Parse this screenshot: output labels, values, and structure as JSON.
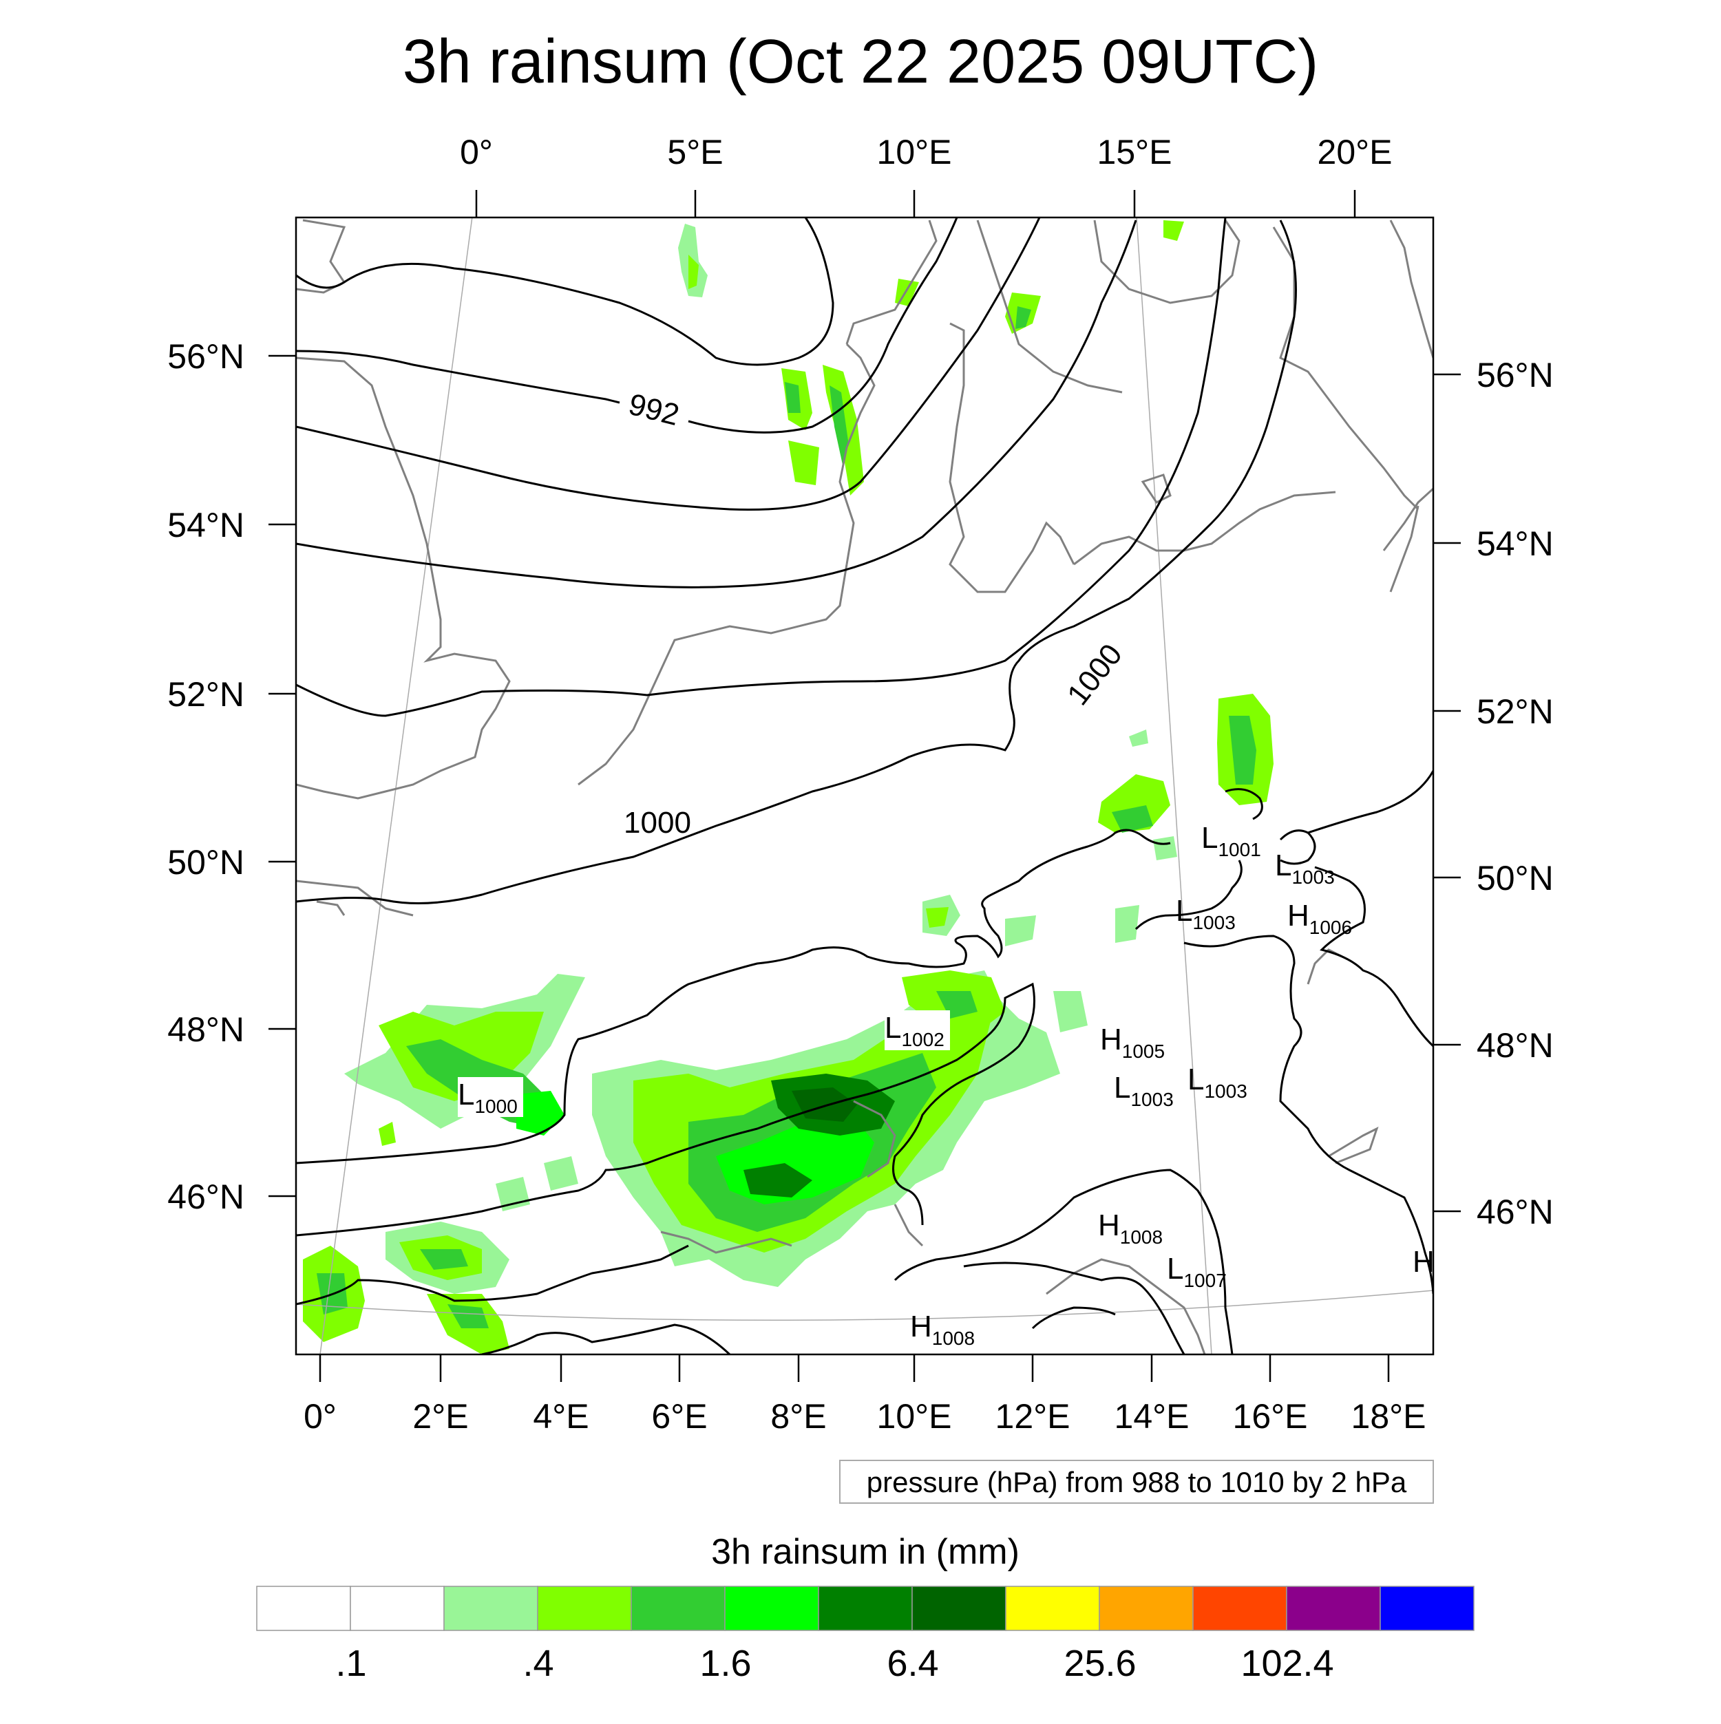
{
  "title": "3h rainsum (Oct 22 2025 09UTC)",
  "top_lon_labels": [
    "0°",
    "5°E",
    "10°E",
    "15°E",
    "20°E"
  ],
  "bottom_lon_labels": [
    "0°",
    "2°E",
    "4°E",
    "6°E",
    "8°E",
    "10°E",
    "12°E",
    "14°E",
    "16°E",
    "18°E"
  ],
  "left_lat_labels": [
    "56°N",
    "54°N",
    "52°N",
    "50°N",
    "48°N",
    "46°N"
  ],
  "right_lat_labels": [
    "56°N",
    "54°N",
    "52°N",
    "50°N",
    "48°N",
    "46°N"
  ],
  "contour_labels": [
    "992",
    "1000",
    "1000"
  ],
  "pressure_centers": [
    {
      "type": "L",
      "value": "1000"
    },
    {
      "type": "L",
      "value": "1002"
    },
    {
      "type": "L",
      "value": "1001"
    },
    {
      "type": "L",
      "value": "1003"
    },
    {
      "type": "L",
      "value": "1003"
    },
    {
      "type": "H",
      "value": "1006"
    },
    {
      "type": "H",
      "value": "1005"
    },
    {
      "type": "L",
      "value": "1003"
    },
    {
      "type": "L",
      "value": "1003"
    },
    {
      "type": "H",
      "value": "1008"
    },
    {
      "type": "L",
      "value": "1007"
    },
    {
      "type": "H",
      "value": "1008"
    },
    {
      "type": "H",
      "value": ""
    }
  ],
  "contour_note": "pressure (hPa) from 988 to 1010 by 2 hPa",
  "legend": {
    "title": "3h rainsum in (mm)",
    "colors": [
      "#ffffff",
      "#ffffff",
      "#99f597",
      "#80ff00",
      "#32cd32",
      "#00ff00",
      "#008000",
      "#006400",
      "#ffff00",
      "#ffa500",
      "#ff4500",
      "#8b008b",
      "#0000ff"
    ],
    "tick_labels": [
      ".1",
      ".4",
      "1.6",
      "6.4",
      "25.6",
      "102.4"
    ]
  }
}
